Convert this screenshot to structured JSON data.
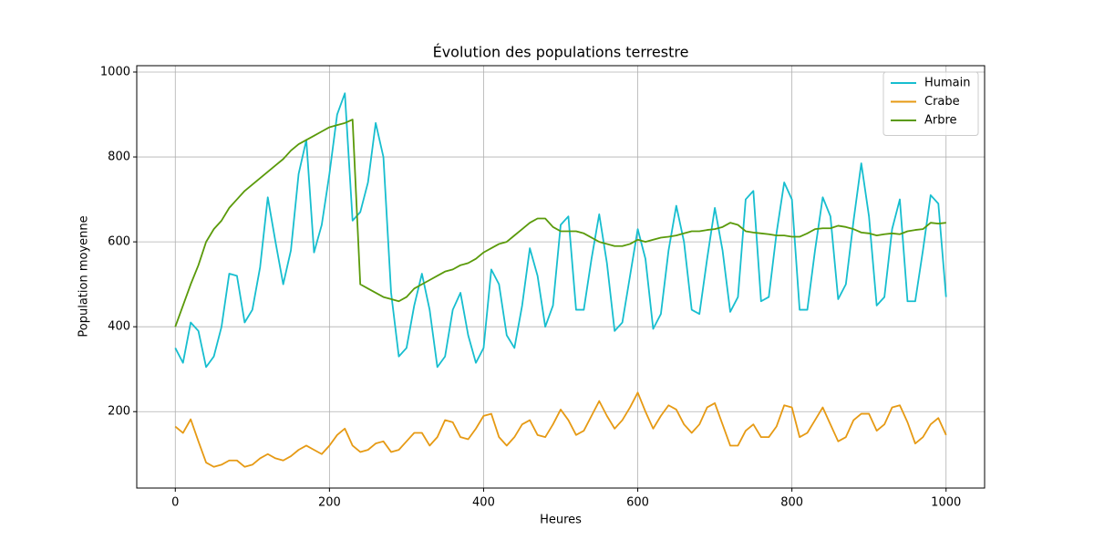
{
  "chart_data": {
    "type": "line",
    "title": "Évolution des populations terrestre",
    "x_label": "Heures",
    "y_label": "Population moyenne",
    "x": [
      0,
      10,
      20,
      30,
      40,
      50,
      60,
      70,
      80,
      90,
      100,
      110,
      120,
      130,
      140,
      150,
      160,
      170,
      180,
      190,
      200,
      210,
      220,
      230,
      240,
      250,
      260,
      270,
      280,
      290,
      300,
      310,
      320,
      330,
      340,
      350,
      360,
      370,
      380,
      390,
      400,
      410,
      420,
      430,
      440,
      450,
      460,
      470,
      480,
      490,
      500,
      510,
      520,
      530,
      540,
      550,
      560,
      570,
      580,
      590,
      600,
      610,
      620,
      630,
      640,
      650,
      660,
      670,
      680,
      690,
      700,
      710,
      720,
      730,
      740,
      750,
      760,
      770,
      780,
      790,
      800,
      810,
      820,
      830,
      840,
      850,
      860,
      870,
      880,
      890,
      900,
      910,
      920,
      930,
      940,
      950,
      960,
      970,
      980,
      990,
      1000
    ],
    "series": [
      {
        "name": "Humain",
        "color": "#17becf",
        "values": [
          350,
          315,
          410,
          390,
          305,
          330,
          400,
          525,
          520,
          410,
          440,
          540,
          705,
          600,
          500,
          580,
          760,
          840,
          575,
          640,
          760,
          900,
          950,
          650,
          670,
          740,
          880,
          800,
          480,
          330,
          350,
          450,
          525,
          440,
          305,
          330,
          440,
          480,
          380,
          315,
          350,
          535,
          500,
          380,
          350,
          450,
          585,
          520,
          400,
          450,
          640,
          660,
          440,
          440,
          560,
          665,
          550,
          390,
          410,
          520,
          630,
          560,
          395,
          430,
          580,
          685,
          600,
          440,
          430,
          560,
          680,
          580,
          435,
          470,
          700,
          720,
          460,
          470,
          620,
          740,
          700,
          440,
          440,
          580,
          705,
          660,
          465,
          500,
          650,
          785,
          660,
          450,
          470,
          630,
          700,
          460,
          460,
          580,
          710,
          690,
          470
        ]
      },
      {
        "name": "Crabe",
        "color": "#e69a14",
        "values": [
          165,
          150,
          182,
          130,
          80,
          70,
          75,
          85,
          85,
          70,
          75,
          90,
          100,
          90,
          85,
          95,
          110,
          120,
          110,
          100,
          120,
          145,
          160,
          120,
          105,
          110,
          125,
          130,
          105,
          110,
          130,
          150,
          150,
          120,
          140,
          180,
          175,
          140,
          135,
          160,
          190,
          195,
          140,
          120,
          140,
          170,
          180,
          145,
          140,
          170,
          205,
          180,
          145,
          155,
          190,
          225,
          190,
          160,
          180,
          210,
          245,
          200,
          160,
          190,
          215,
          205,
          170,
          150,
          170,
          210,
          220,
          170,
          120,
          120,
          155,
          170,
          140,
          140,
          165,
          215,
          210,
          140,
          150,
          180,
          210,
          170,
          130,
          140,
          180,
          195,
          195,
          155,
          170,
          210,
          215,
          175,
          125,
          140,
          170,
          185,
          145
        ]
      },
      {
        "name": "Arbre",
        "color": "#5a9a0a",
        "values": [
          400,
          450,
          500,
          545,
          600,
          630,
          650,
          680,
          700,
          720,
          735,
          750,
          765,
          780,
          795,
          815,
          830,
          840,
          850,
          860,
          870,
          875,
          880,
          888,
          500,
          490,
          480,
          470,
          465,
          460,
          470,
          490,
          500,
          510,
          520,
          530,
          535,
          545,
          550,
          560,
          575,
          585,
          595,
          600,
          615,
          630,
          645,
          655,
          655,
          635,
          625,
          625,
          625,
          620,
          610,
          600,
          595,
          590,
          590,
          595,
          605,
          600,
          605,
          610,
          612,
          615,
          620,
          625,
          625,
          628,
          630,
          635,
          645,
          640,
          625,
          622,
          620,
          618,
          615,
          615,
          612,
          612,
          620,
          630,
          632,
          632,
          638,
          635,
          630,
          622,
          620,
          615,
          618,
          620,
          618,
          625,
          628,
          630,
          645,
          643,
          645
        ]
      }
    ],
    "xlim": [
      -50,
      1050
    ],
    "ylim": [
      20,
      1015
    ],
    "xticks": [
      0,
      200,
      400,
      600,
      800,
      1000
    ],
    "yticks": [
      200,
      400,
      600,
      800,
      1000
    ],
    "grid": true,
    "legend": "upper right"
  }
}
